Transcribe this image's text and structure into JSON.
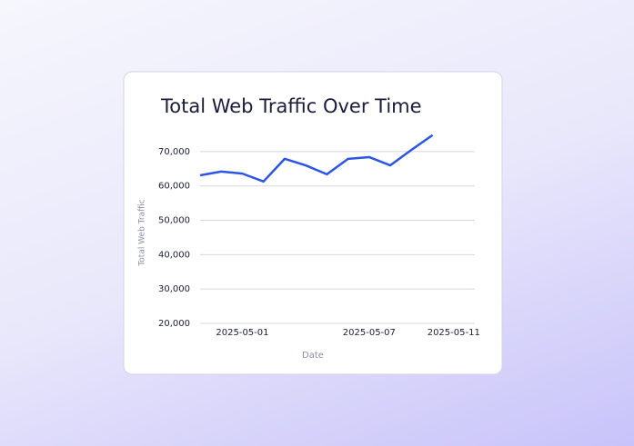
{
  "chart_data": {
    "type": "line",
    "title": "Total Web Traffic Over Time",
    "x_label": "Date",
    "y_label": "Total Web Traffic",
    "x": [
      "2025-04-29",
      "2025-04-30",
      "2025-05-01",
      "2025-05-02",
      "2025-05-03",
      "2025-05-04",
      "2025-05-05",
      "2025-05-06",
      "2025-05-07",
      "2025-05-08",
      "2025-05-09",
      "2025-05-10"
    ],
    "series": [
      {
        "name": "Total Web Traffic",
        "color": "#2b55e6",
        "values": [
          63100,
          64200,
          63600,
          61300,
          67900,
          66000,
          63400,
          67900,
          68400,
          66000,
          70500,
          74800
        ]
      }
    ],
    "xlim": [
      "2025-04-29",
      "2025-05-12"
    ],
    "xticks": [
      "2025-05-01",
      "2025-05-07",
      "2025-05-11"
    ],
    "ylim": [
      20000,
      75000
    ],
    "yticks": [
      {
        "value": 20000,
        "label": "20,000"
      },
      {
        "value": 30000,
        "label": "30,000"
      },
      {
        "value": 40000,
        "label": "40,000"
      },
      {
        "value": 50000,
        "label": "50,000"
      },
      {
        "value": 60000,
        "label": "60,000"
      },
      {
        "value": 70000,
        "label": "70,000"
      }
    ],
    "grid": true
  }
}
